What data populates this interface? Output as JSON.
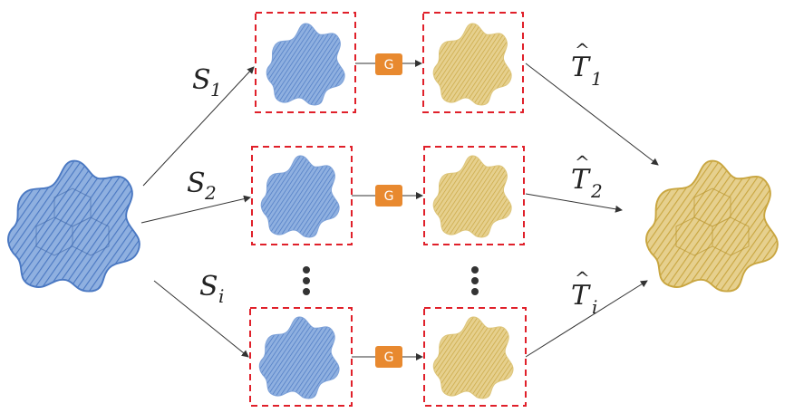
{
  "colors": {
    "source": "#4a78c2",
    "source_light": "#7da1d8",
    "target": "#c9a640",
    "target_light": "#ddc57a",
    "box_border": "#e0202a",
    "g_block": "#e8892f",
    "arrow": "#333333"
  },
  "labels": {
    "s1_base": "S",
    "s1_sub": "1",
    "s2_base": "S",
    "s2_sub": "2",
    "si_base": "S",
    "si_sub": "i",
    "t1_base": "T",
    "t1_sub": "1",
    "t2_base": "T",
    "t2_sub": "2",
    "ti_base": "T",
    "ti_sub": "i",
    "hat": "^"
  },
  "generator_label": "G",
  "rows": [
    {
      "id": "row-1",
      "source_label": "S1",
      "target_label": "T1"
    },
    {
      "id": "row-2",
      "source_label": "S2",
      "target_label": "T2"
    },
    {
      "id": "row-i",
      "source_label": "Si",
      "target_label": "Ti"
    }
  ],
  "icons": {
    "input_shape": "blob-point-cloud",
    "output_shape": "blob-point-cloud",
    "ellipsis": "vertical-dots"
  }
}
